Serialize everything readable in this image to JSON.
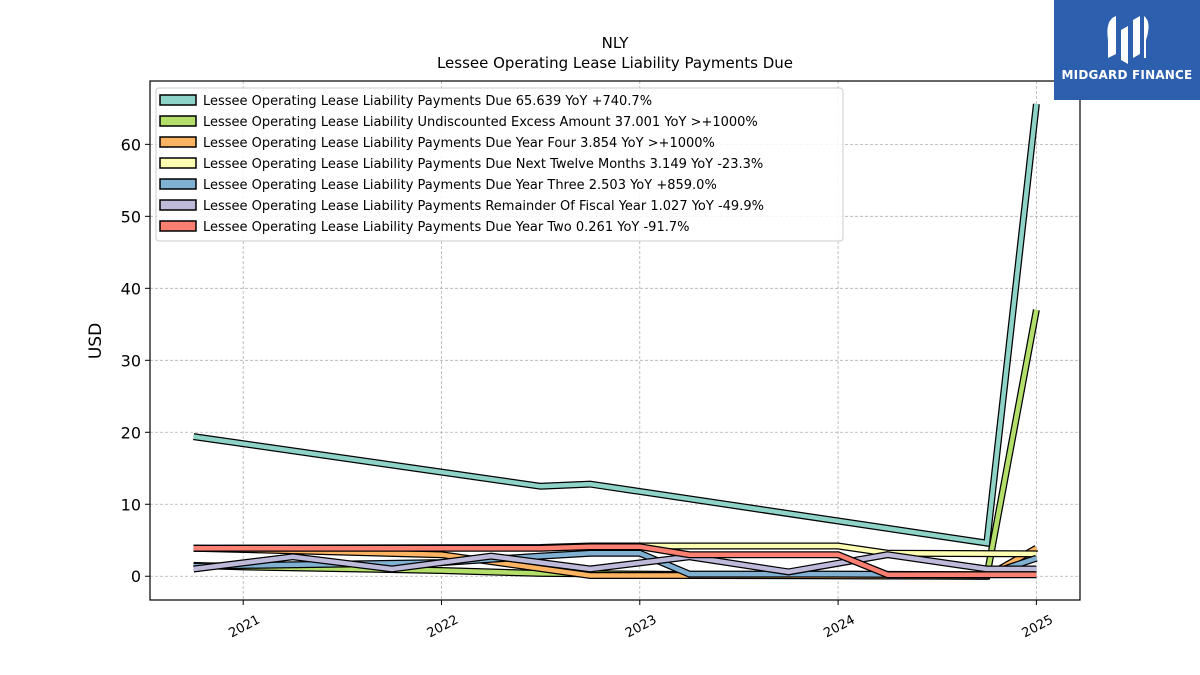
{
  "brand": {
    "name": "MIDGARD FINANCE",
    "color": "#2c5fae"
  },
  "chart_data": {
    "type": "line",
    "title": "NLY",
    "subtitle": "Lessee Operating Lease Liability Payments Due",
    "xlabel": "",
    "ylabel": "USD",
    "xlim": [
      2020.53,
      2025.22
    ],
    "ylim": [
      -3.3,
      68.8
    ],
    "x_ticks": [
      "2021",
      "2022",
      "2023",
      "2024",
      "2025"
    ],
    "y_ticks": [
      0,
      10,
      20,
      30,
      40,
      50,
      60
    ],
    "grid": true,
    "legend_position": "top-left",
    "series": [
      {
        "name": "Lessee Operating Lease Liability Payments Due  65.639 YoY +740.7%",
        "color": "#8dd3c7",
        "points": [
          [
            2020.75,
            19.4
          ],
          [
            2022.5,
            12.5
          ],
          [
            2022.75,
            12.8
          ],
          [
            2024.75,
            4.6
          ],
          [
            2025.0,
            65.6
          ]
        ]
      },
      {
        "name": "Lessee Operating Lease Liability Undiscounted Excess Amount  37.001 YoY >+1000%",
        "color": "#b3de69",
        "points": [
          [
            2020.75,
            1.5
          ],
          [
            2021.0,
            1.3
          ],
          [
            2022.0,
            0.8
          ],
          [
            2022.5,
            0.4
          ],
          [
            2023.0,
            0.3
          ],
          [
            2024.0,
            0.1
          ],
          [
            2024.75,
            0.0
          ],
          [
            2025.0,
            37.0
          ]
        ]
      },
      {
        "name": "Lessee Operating Lease Liability Payments Due Year Four  3.854 YoY >+1000%",
        "color": "#fdb462",
        "points": [
          [
            2020.75,
            3.9
          ],
          [
            2022.0,
            3.0
          ],
          [
            2022.75,
            0.1
          ],
          [
            2023.25,
            0.1
          ],
          [
            2024.75,
            0.0
          ],
          [
            2025.0,
            3.9
          ]
        ]
      },
      {
        "name": "Lessee Operating Lease Liability Payments Due Next Twelve Months  3.149 YoY -23.3%",
        "color": "#ffffb3",
        "points": [
          [
            2020.75,
            3.9
          ],
          [
            2022.5,
            4.0
          ],
          [
            2022.75,
            4.2
          ],
          [
            2024.0,
            4.2
          ],
          [
            2024.25,
            3.2
          ],
          [
            2025.0,
            3.1
          ]
        ]
      },
      {
        "name": "Lessee Operating Lease Liability Payments Due Year Three  2.503 YoY +859.0%",
        "color": "#80b1d3",
        "points": [
          [
            2020.75,
            1.4
          ],
          [
            2022.0,
            1.9
          ],
          [
            2022.5,
            2.8
          ],
          [
            2022.75,
            3.2
          ],
          [
            2023.0,
            3.2
          ],
          [
            2023.25,
            0.3
          ],
          [
            2024.0,
            0.3
          ],
          [
            2024.75,
            0.2
          ],
          [
            2025.0,
            2.5
          ]
        ]
      },
      {
        "name": "Lessee Operating Lease Liability Payments Remainder Of Fiscal Year  1.027 YoY -49.9%",
        "color": "#bebada",
        "points": [
          [
            2020.75,
            1.0
          ],
          [
            2021.25,
            2.7
          ],
          [
            2021.75,
            1.0
          ],
          [
            2022.25,
            2.8
          ],
          [
            2022.75,
            1.0
          ],
          [
            2023.25,
            2.7
          ],
          [
            2023.75,
            0.6
          ],
          [
            2024.25,
            3.0
          ],
          [
            2024.75,
            1.0
          ],
          [
            2025.0,
            1.0
          ]
        ]
      },
      {
        "name": "Lessee Operating Lease Liability Payments Due Year Two  0.261 YoY -91.7%",
        "color": "#fb8072",
        "points": [
          [
            2020.75,
            3.9
          ],
          [
            2022.5,
            3.9
          ],
          [
            2022.75,
            4.1
          ],
          [
            2023.0,
            4.1
          ],
          [
            2023.25,
            3.0
          ],
          [
            2024.0,
            3.0
          ],
          [
            2024.25,
            0.2
          ],
          [
            2025.0,
            0.2
          ]
        ]
      }
    ]
  }
}
